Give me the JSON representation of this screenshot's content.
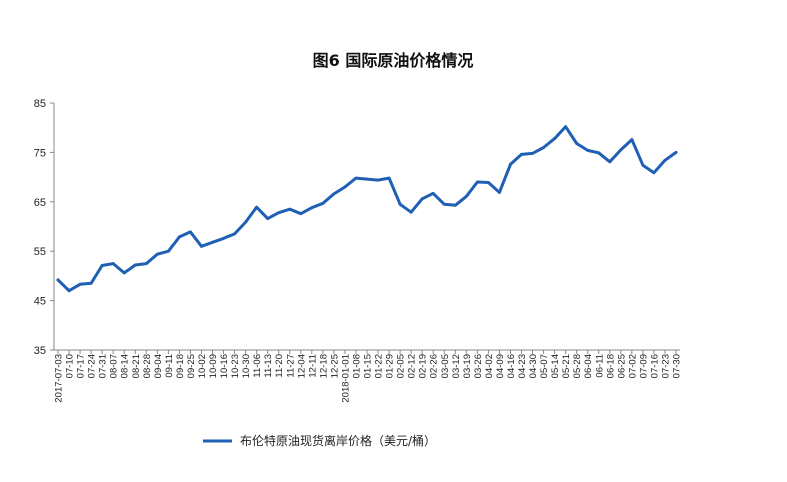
{
  "chart_data": {
    "type": "line",
    "title": "图6 国际原油价格情况",
    "xlabel": "",
    "ylabel": "",
    "ylim": [
      35,
      85
    ],
    "yticks": [
      "35",
      "45",
      "55",
      "65",
      "75",
      "85"
    ],
    "legend_position": "bottom",
    "grid": false,
    "line_color": "#1f5fb4",
    "xticks": [
      "2017-07-03",
      "07-10",
      "07-17",
      "07-24",
      "07-31",
      "08-07",
      "08-14",
      "08-21",
      "08-28",
      "09-04",
      "09-11",
      "09-18",
      "09-25",
      "10-02",
      "10-09",
      "10-16",
      "10-23",
      "10-30",
      "11-06",
      "11-13",
      "11-20",
      "11-27",
      "12-04",
      "12-11",
      "12-18",
      "12-25",
      "2018-01-01",
      "01-08",
      "01-15",
      "01-22",
      "01-29",
      "02-05",
      "02-12",
      "02-19",
      "02-26",
      "03-05",
      "03-12",
      "03-19",
      "03-26",
      "04-02",
      "04-09",
      "04-16",
      "04-23",
      "04-30",
      "05-07",
      "05-14",
      "05-21",
      "05-28",
      "06-04",
      "06-11",
      "06-18",
      "06-25",
      "07-02",
      "07-09",
      "07-16",
      "07-23",
      "07-30"
    ],
    "series": [
      {
        "name": "布伦特原油现货离岸价格（美元/桶）",
        "values": [
          49.2,
          47.0,
          48.3,
          48.5,
          52.1,
          52.5,
          50.6,
          52.2,
          52.5,
          54.4,
          55.0,
          57.9,
          58.9,
          56.0,
          56.8,
          57.6,
          58.5,
          60.9,
          63.9,
          61.6,
          62.8,
          63.5,
          62.6,
          63.8,
          64.7,
          66.6,
          68.0,
          69.8,
          69.6,
          69.4,
          69.8,
          64.5,
          62.9,
          65.6,
          66.7,
          64.5,
          64.3,
          66.1,
          69.0,
          68.9,
          66.9,
          72.6,
          74.6,
          74.8,
          76.0,
          77.8,
          80.2,
          76.8,
          75.4,
          74.9,
          73.1,
          75.5,
          77.6,
          72.4,
          70.9,
          73.4,
          75.0
        ]
      }
    ]
  },
  "legend": {
    "label": "布伦特原油现货离岸价格（美元/桶）",
    "color": "#1f5fb4"
  }
}
